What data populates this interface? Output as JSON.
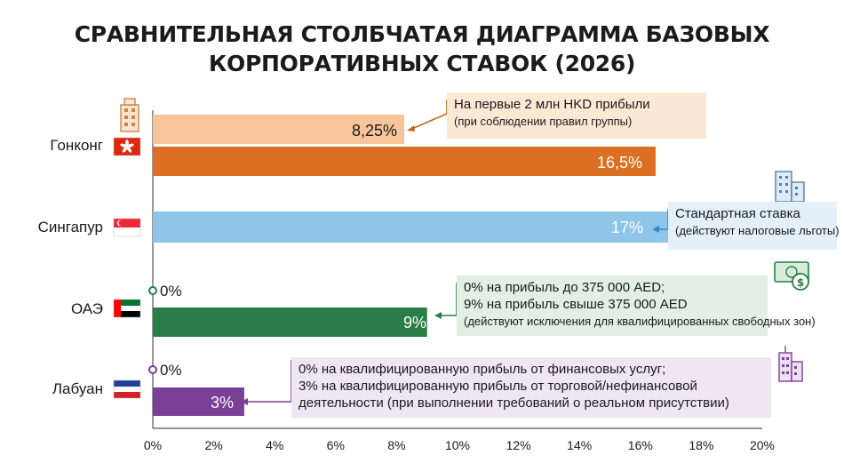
{
  "title_line1": "СРАВНИТЕЛЬНАЯ СТОЛБЧАТАЯ ДИАГРАММА БАЗОВЫХ",
  "title_line2": "КОРПОРАТИВНЫХ СТАВОК (2026)",
  "colors": {
    "hk_light": "#f8c49a",
    "hk_dark": "#dc6f22",
    "singapore": "#8ec5e8",
    "uae": "#2a7d47",
    "labuan": "#7a3f96",
    "note_hk": "#fde8d6",
    "note_sg": "#e3f0fa",
    "note_uae": "#e2f0e3",
    "note_lb": "#efe6f4"
  },
  "chart_data": {
    "type": "bar",
    "orientation": "horizontal",
    "categories": [
      "Гонконг",
      "Сингапур",
      "ОАЭ",
      "Лабуан"
    ],
    "bars": [
      {
        "category": "Гонконг",
        "value": 8.25,
        "label": "8,25%",
        "color": "hk_light"
      },
      {
        "category": "Гонконг",
        "value": 16.5,
        "label": "16,5%",
        "color": "hk_dark"
      },
      {
        "category": "Сингапур",
        "value": 17,
        "label": "17%",
        "color": "singapore"
      },
      {
        "category": "ОАЭ",
        "value": 0,
        "label": "0%",
        "color": "uae"
      },
      {
        "category": "ОАЭ",
        "value": 9,
        "label": "9%",
        "color": "uae"
      },
      {
        "category": "Лабуан",
        "value": 0,
        "label": "0%",
        "color": "labuan"
      },
      {
        "category": "Лабуан",
        "value": 3,
        "label": "3%",
        "color": "labuan"
      }
    ],
    "xlim": [
      0,
      20
    ],
    "xticks": [
      "0%",
      "2%",
      "4%",
      "6%",
      "8%",
      "10%",
      "12%",
      "14%",
      "16%",
      "18%",
      "20%"
    ],
    "annotations": {
      "hk": {
        "line1": "На первые 2 млн HKD прибыли",
        "line2": "(при соблюдении правил группы)"
      },
      "sg": {
        "line1": "Стандартная ставка",
        "line2": "(действуют налоговые льготы)"
      },
      "uae": {
        "line1": "0% на прибыль до 375 000 AED;",
        "line2": "9% на прибыль свыше 375 000 AED",
        "line3": "(действуют исключения для квалифицированных свободных зон)"
      },
      "lb": {
        "line1": "0% на квалифицированную прибыль от финансовых услуг;",
        "line2": "3% на квалифицированную прибыль от торговой/нефинансовой",
        "line3": "деятельности (при выполнении требований о реальном присутствии)"
      }
    }
  }
}
